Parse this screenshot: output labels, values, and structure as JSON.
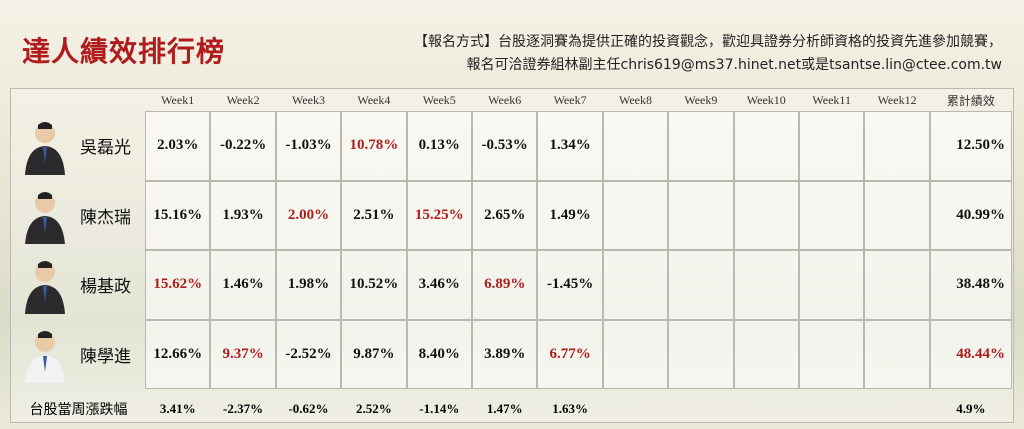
{
  "title": "達人績效排行榜",
  "notice": [
    "【報名方式】台股逐洞賽為提供正確的投資觀念，歡迎具證券分析師資格的投資先進參加競賽，",
    "報名可洽證券組林副主任chris619@ms37.hinet.net或是tsantse.lin@ctee.com.tw"
  ],
  "highlight_color": "#b01c1c",
  "table": {
    "header": [
      "Week1",
      "Week2",
      "Week3",
      "Week4",
      "Week5",
      "Week6",
      "Week7",
      "Week8",
      "Week9",
      "Week10",
      "Week11",
      "Week12"
    ],
    "total_header": "累計績效",
    "rows": [
      {
        "name": "吳磊光",
        "cells": [
          "2.03%",
          "-0.22%",
          "-1.03%",
          "10.78%",
          "0.13%",
          "-0.53%",
          "1.34%"
        ],
        "highlight": [
          3
        ],
        "total": "12.50%",
        "total_highlight": false
      },
      {
        "name": "陳杰瑞",
        "cells": [
          "15.16%",
          "1.93%",
          "2.00%",
          "2.51%",
          "15.25%",
          "2.65%",
          "1.49%"
        ],
        "highlight": [
          2,
          4
        ],
        "total": "40.99%",
        "total_highlight": false
      },
      {
        "name": "楊基政",
        "cells": [
          "15.62%",
          "1.46%",
          "1.98%",
          "10.52%",
          "3.46%",
          "6.89%",
          "-1.45%"
        ],
        "highlight": [
          0,
          5
        ],
        "total": "38.48%",
        "total_highlight": false
      },
      {
        "name": "陳學進",
        "cells": [
          "12.66%",
          "9.37%",
          "-2.52%",
          "9.87%",
          "8.40%",
          "3.89%",
          "6.77%"
        ],
        "highlight": [
          1,
          6
        ],
        "total": "48.44%",
        "total_highlight": true
      }
    ],
    "market": {
      "name": "台股當周漲跌幅",
      "cells": [
        "3.41%",
        "-2.37%",
        "-0.62%",
        "2.52%",
        "-1.14%",
        "1.47%",
        "1.63%"
      ],
      "total": "4.9%"
    }
  }
}
